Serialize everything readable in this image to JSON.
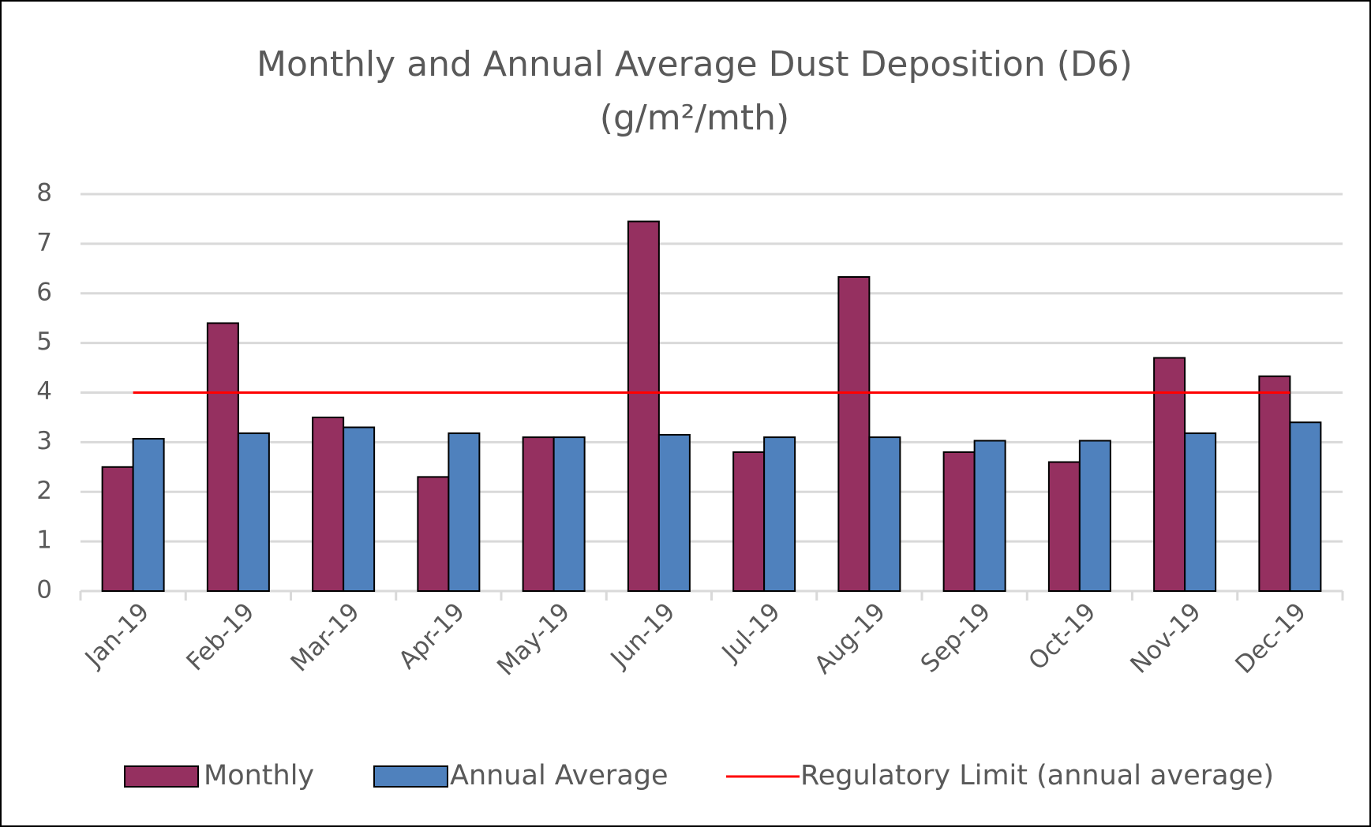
{
  "chart_data": {
    "type": "bar",
    "title": "Monthly and Annual Average Dust Deposition (D6)",
    "subtitle": "(g/m²/mth)",
    "categories": [
      "Jan-19",
      "Feb-19",
      "Mar-19",
      "Apr-19",
      "May-19",
      "Jun-19",
      "Jul-19",
      "Aug-19",
      "Sep-19",
      "Oct-19",
      "Nov-19",
      "Dec-19"
    ],
    "series": [
      {
        "name": "Monthly",
        "color": "#953060",
        "values": [
          2.5,
          5.4,
          3.5,
          2.3,
          3.1,
          7.45,
          2.8,
          6.33,
          2.8,
          2.6,
          4.7,
          4.33
        ]
      },
      {
        "name": "Annual Average",
        "color": "#4f81bd",
        "values": [
          3.07,
          3.18,
          3.3,
          3.18,
          3.1,
          3.15,
          3.1,
          3.1,
          3.03,
          3.03,
          3.18,
          3.4
        ]
      },
      {
        "name": "Regulatory Limit (annual average)",
        "color": "#ff0000",
        "type": "line",
        "values": [
          4,
          4,
          4,
          4,
          4,
          4,
          4,
          4,
          4,
          4,
          4,
          4
        ]
      }
    ],
    "ylim": [
      0,
      8
    ],
    "yticks": [
      0,
      1,
      2,
      3,
      4,
      5,
      6,
      7,
      8
    ],
    "grid": true,
    "legend": "bottom"
  }
}
